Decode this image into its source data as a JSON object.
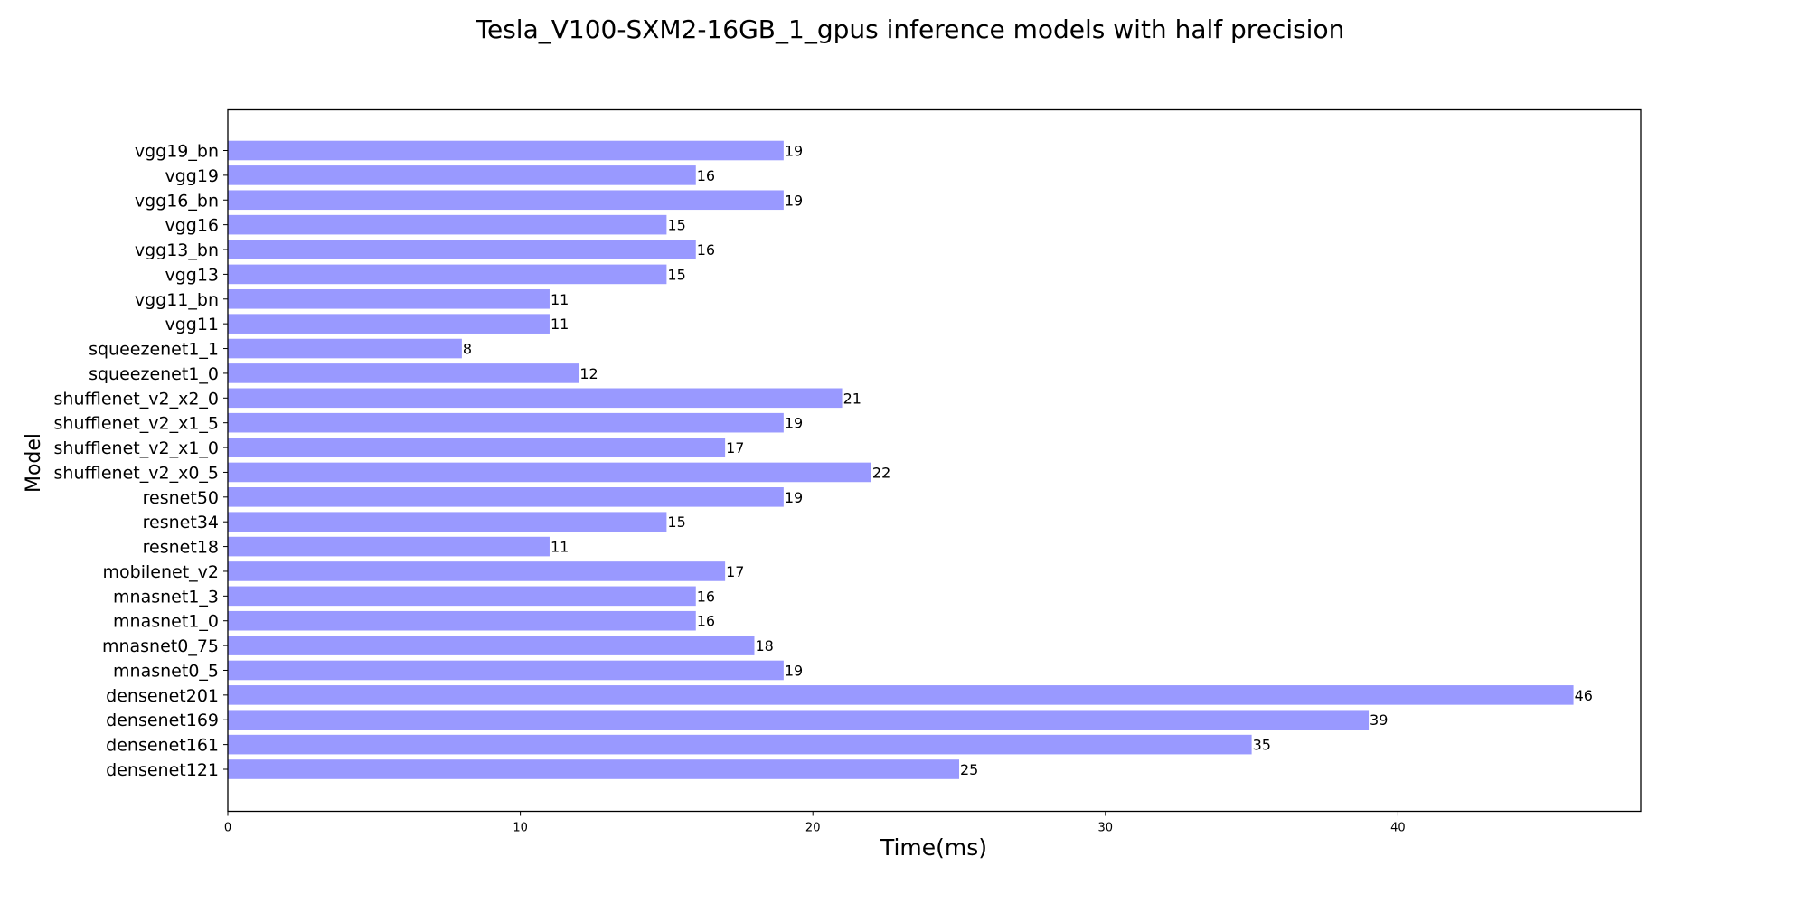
{
  "chart_data": {
    "type": "bar",
    "orientation": "horizontal",
    "title": "Tesla_V100-SXM2-16GB_1_gpus inference models with half precision",
    "xlabel": "Time(ms)",
    "ylabel": "Model",
    "xlim": [
      0,
      48.3
    ],
    "xticks": [
      0,
      10,
      20,
      30,
      40
    ],
    "grid": false,
    "bar_color": "#9999ff",
    "categories": [
      "densenet121",
      "densenet161",
      "densenet169",
      "densenet201",
      "mnasnet0_5",
      "mnasnet0_75",
      "mnasnet1_0",
      "mnasnet1_3",
      "mobilenet_v2",
      "resnet18",
      "resnet34",
      "resnet50",
      "shufflenet_v2_x0_5",
      "shufflenet_v2_x1_0",
      "shufflenet_v2_x1_5",
      "shufflenet_v2_x2_0",
      "squeezenet1_0",
      "squeezenet1_1",
      "vgg11",
      "vgg11_bn",
      "vgg13",
      "vgg13_bn",
      "vgg16",
      "vgg16_bn",
      "vgg19",
      "vgg19_bn"
    ],
    "values": [
      25,
      35,
      39,
      46,
      19,
      18,
      16,
      16,
      17,
      11,
      15,
      19,
      22,
      17,
      19,
      21,
      12,
      8,
      11,
      11,
      15,
      16,
      15,
      19,
      16,
      19
    ]
  }
}
